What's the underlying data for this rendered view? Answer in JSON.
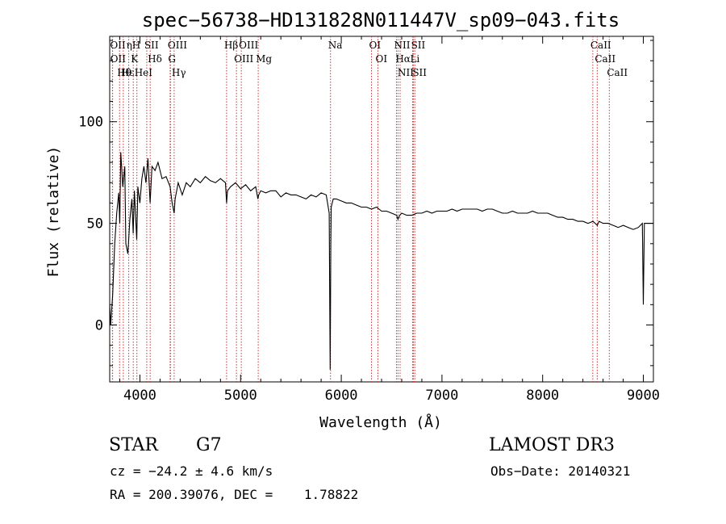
{
  "chart_data": {
    "type": "line",
    "title": "spec−56738−HD131828N011447V_sp09−043.fits",
    "xlabel": "Wavelength (Å)",
    "ylabel": "Flux (relative)",
    "xlim": [
      3700,
      9100
    ],
    "ylim": [
      -28,
      142
    ],
    "x_ticks": [
      4000,
      5000,
      6000,
      7000,
      8000,
      9000
    ],
    "x_tick_labels": [
      "4000",
      "5000",
      "6000",
      "7000",
      "8000",
      "9000"
    ],
    "y_ticks": [
      0,
      50,
      100
    ],
    "y_tick_labels": [
      "0",
      "50",
      "100"
    ],
    "grid": false,
    "series": [
      {
        "points": [
          [
            3700,
            10
          ],
          [
            3710,
            0
          ],
          [
            3730,
            15
          ],
          [
            3750,
            40
          ],
          [
            3770,
            55
          ],
          [
            3790,
            65
          ],
          [
            3800,
            50
          ],
          [
            3810,
            85
          ],
          [
            3830,
            68
          ],
          [
            3850,
            78
          ],
          [
            3860,
            40
          ],
          [
            3880,
            35
          ],
          [
            3900,
            52
          ],
          [
            3920,
            62
          ],
          [
            3933,
            45
          ],
          [
            3945,
            66
          ],
          [
            3968,
            42
          ],
          [
            3980,
            68
          ],
          [
            4000,
            60
          ],
          [
            4020,
            72
          ],
          [
            4040,
            78
          ],
          [
            4060,
            70
          ],
          [
            4080,
            82
          ],
          [
            4101,
            60
          ],
          [
            4120,
            78
          ],
          [
            4150,
            76
          ],
          [
            4180,
            80
          ],
          [
            4220,
            72
          ],
          [
            4260,
            73
          ],
          [
            4300,
            68
          ],
          [
            4320,
            60
          ],
          [
            4340,
            55
          ],
          [
            4350,
            62
          ],
          [
            4380,
            70
          ],
          [
            4420,
            64
          ],
          [
            4460,
            70
          ],
          [
            4500,
            68
          ],
          [
            4550,
            72
          ],
          [
            4600,
            70
          ],
          [
            4650,
            73
          ],
          [
            4700,
            71
          ],
          [
            4750,
            70
          ],
          [
            4800,
            72
          ],
          [
            4850,
            70
          ],
          [
            4861,
            60
          ],
          [
            4870,
            66
          ],
          [
            4900,
            68
          ],
          [
            4950,
            70
          ],
          [
            5000,
            67
          ],
          [
            5050,
            69
          ],
          [
            5100,
            66
          ],
          [
            5150,
            68
          ],
          [
            5172,
            62
          ],
          [
            5180,
            64
          ],
          [
            5200,
            66
          ],
          [
            5250,
            65
          ],
          [
            5300,
            66
          ],
          [
            5350,
            66
          ],
          [
            5400,
            63
          ],
          [
            5450,
            65
          ],
          [
            5500,
            64
          ],
          [
            5550,
            64
          ],
          [
            5600,
            63
          ],
          [
            5650,
            62
          ],
          [
            5700,
            64
          ],
          [
            5750,
            63
          ],
          [
            5800,
            65
          ],
          [
            5850,
            64
          ],
          [
            5880,
            55
          ],
          [
            5890,
            -22
          ],
          [
            5896,
            40
          ],
          [
            5900,
            58
          ],
          [
            5920,
            62
          ],
          [
            5950,
            62
          ],
          [
            6000,
            61
          ],
          [
            6050,
            60
          ],
          [
            6100,
            60
          ],
          [
            6150,
            59
          ],
          [
            6200,
            58
          ],
          [
            6250,
            58
          ],
          [
            6300,
            57
          ],
          [
            6350,
            58
          ],
          [
            6400,
            56
          ],
          [
            6450,
            56
          ],
          [
            6500,
            55
          ],
          [
            6550,
            54
          ],
          [
            6563,
            52
          ],
          [
            6580,
            54
          ],
          [
            6600,
            55
          ],
          [
            6650,
            54
          ],
          [
            6700,
            54
          ],
          [
            6750,
            55
          ],
          [
            6800,
            55
          ],
          [
            6850,
            56
          ],
          [
            6900,
            55
          ],
          [
            6950,
            56
          ],
          [
            7000,
            56
          ],
          [
            7050,
            56
          ],
          [
            7100,
            57
          ],
          [
            7150,
            56
          ],
          [
            7200,
            57
          ],
          [
            7250,
            57
          ],
          [
            7300,
            57
          ],
          [
            7350,
            57
          ],
          [
            7400,
            56
          ],
          [
            7450,
            57
          ],
          [
            7500,
            57
          ],
          [
            7550,
            56
          ],
          [
            7600,
            55
          ],
          [
            7650,
            55
          ],
          [
            7700,
            56
          ],
          [
            7750,
            55
          ],
          [
            7800,
            55
          ],
          [
            7850,
            55
          ],
          [
            7900,
            56
          ],
          [
            7950,
            55
          ],
          [
            8000,
            55
          ],
          [
            8050,
            55
          ],
          [
            8100,
            54
          ],
          [
            8150,
            53
          ],
          [
            8200,
            53
          ],
          [
            8250,
            52
          ],
          [
            8300,
            52
          ],
          [
            8350,
            51
          ],
          [
            8400,
            51
          ],
          [
            8450,
            50
          ],
          [
            8500,
            51
          ],
          [
            8542,
            49
          ],
          [
            8560,
            51
          ],
          [
            8600,
            50
          ],
          [
            8650,
            50
          ],
          [
            8700,
            49
          ],
          [
            8750,
            48
          ],
          [
            8800,
            49
          ],
          [
            8850,
            48
          ],
          [
            8900,
            47
          ],
          [
            8950,
            48
          ],
          [
            8990,
            50
          ],
          [
            9000,
            10
          ],
          [
            9010,
            50
          ],
          [
            9100,
            50
          ]
        ]
      }
    ],
    "line_markers": [
      {
        "label": "Hθ",
        "x": 3798
      },
      {
        "label": "OII",
        "x": 3727
      },
      {
        "label": "OII",
        "x": 3729
      },
      {
        "label": "Hε",
        "x": 3835
      },
      {
        "label": "ηH",
        "x": 3889
      },
      {
        "label": "K",
        "x": 3934
      },
      {
        "label": "HeI",
        "x": 3970
      },
      {
        "label": "SII",
        "x": 4068
      },
      {
        "label": "Hδ",
        "x": 4102
      },
      {
        "label": "OIII",
        "x": 4300
      },
      {
        "label": "Hγ",
        "x": 4340
      },
      {
        "label": "G",
        "x": 4304
      },
      {
        "label": "Hβ",
        "x": 4861
      },
      {
        "label": "OIII",
        "x": 4959
      },
      {
        "label": "OIII",
        "x": 5007
      },
      {
        "label": "Mg",
        "x": 5175
      },
      {
        "label": "Na",
        "x": 5893
      },
      {
        "label": "OI",
        "x": 6300
      },
      {
        "label": "OI",
        "x": 6364
      },
      {
        "label": "Hα",
        "x": 6563
      },
      {
        "label": "NII",
        "x": 6548
      },
      {
        "label": "NII",
        "x": 6584
      },
      {
        "label": "SII",
        "x": 6717
      },
      {
        "label": "Li",
        "x": 6708
      },
      {
        "label": "SII",
        "x": 6731
      },
      {
        "label": "CaII",
        "x": 8542
      },
      {
        "label": "CaII",
        "x": 8498
      },
      {
        "label": "CaII",
        "x": 8662
      }
    ]
  },
  "info": {
    "class": "STAR",
    "subclass": "G7",
    "survey": "LAMOST DR3",
    "cz": "cz = −24.2 ± 4.6 km/s",
    "obs_date": "Obs−Date: 20140321",
    "coords": "RA = 200.39076, DEC =    1.78822"
  },
  "colors": {
    "spectrum": "#000000",
    "marker_lines": "#cc3333",
    "axes": "#000000"
  }
}
